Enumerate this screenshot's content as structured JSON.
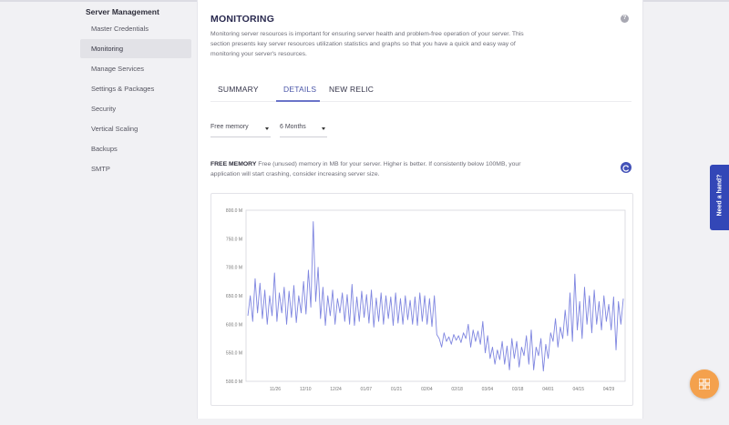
{
  "sidebar": {
    "heading": "Server Management",
    "items": [
      {
        "label": "Master Credentials",
        "active": false
      },
      {
        "label": "Monitoring",
        "active": true
      },
      {
        "label": "Manage Services",
        "active": false
      },
      {
        "label": "Settings & Packages",
        "active": false
      },
      {
        "label": "Security",
        "active": false
      },
      {
        "label": "Vertical Scaling",
        "active": false
      },
      {
        "label": "Backups",
        "active": false
      },
      {
        "label": "SMTP",
        "active": false
      }
    ]
  },
  "main": {
    "title": "MONITORING",
    "description": "Monitoring server resources is important for ensuring server health and problem-free operation of your server. This section presents key server resources utilization statistics and graphs so that you have a quick and easy way of monitoring your server's resources.",
    "tabs": [
      {
        "label": "SUMMARY",
        "active": false
      },
      {
        "label": "DETAILS",
        "active": true
      },
      {
        "label": "NEW RELIC",
        "active": false
      }
    ],
    "filters": {
      "metric": "Free memory",
      "period": "6 Months"
    },
    "metric_title": "FREE MEMORY",
    "metric_description": "Free (unused) memory in MB for your server. Higher is better. If consistently below 100MB, your application will start crashing, consider increasing server size."
  },
  "icons": {
    "help": "help-icon",
    "refresh": "refresh-icon",
    "widget": "grid-icon"
  },
  "colors": {
    "accent": "#4352b8",
    "line": "#7f86e0",
    "fab": "#f4a14d",
    "need_hand_bg": "#3347b7"
  },
  "need_hand": "Need a hand?",
  "chart_data": {
    "type": "line",
    "title": "",
    "xlabel": "",
    "ylabel": "",
    "y_ticks": [
      "800.0 M",
      "750.0 M",
      "700.0 M",
      "650.0 M",
      "600.0 M",
      "550.0 M",
      "500.0 M"
    ],
    "ylim": [
      500,
      800
    ],
    "x_ticks": [
      "11/26",
      "12/10",
      "12/24",
      "01/07",
      "01/21",
      "02/04",
      "02/18",
      "03/04",
      "03/18",
      "04/01",
      "04/15",
      "04/29"
    ],
    "grid": false,
    "series": [
      {
        "values": [
          615,
          650,
          605,
          680,
          620,
          672,
          610,
          660,
          600,
          650,
          615,
          690,
          605,
          655,
          620,
          665,
          600,
          658,
          612,
          668,
          603,
          650,
          620,
          675,
          618,
          695,
          630,
          780,
          640,
          700,
          610,
          665,
          598,
          650,
          615,
          660,
          600,
          645,
          620,
          655,
          605,
          652,
          600,
          670,
          598,
          648,
          605,
          658,
          612,
          652,
          602,
          660,
          595,
          646,
          605,
          655,
          600,
          650,
          610,
          648,
          598,
          655,
          602,
          645,
          600,
          650,
          608,
          642,
          600,
          648,
          598,
          655,
          605,
          650,
          600,
          645,
          596,
          650,
          582,
          575,
          560,
          585,
          570,
          578,
          565,
          582,
          572,
          580,
          568,
          585,
          575,
          600,
          560,
          590,
          570,
          588,
          565,
          605,
          550,
          580,
          540,
          560,
          530,
          555,
          538,
          570,
          530,
          562,
          520,
          575,
          540,
          570,
          525,
          560,
          545,
          580,
          530,
          590,
          520,
          560,
          545,
          575,
          518,
          565,
          540,
          585,
          570,
          610,
          560,
          595,
          575,
          625,
          580,
          655,
          570,
          688,
          590,
          640,
          575,
          665,
          600,
          650,
          585,
          660,
          600,
          640,
          590,
          650,
          605,
          635,
          590,
          648,
          555,
          640,
          600,
          645
        ]
      }
    ]
  }
}
